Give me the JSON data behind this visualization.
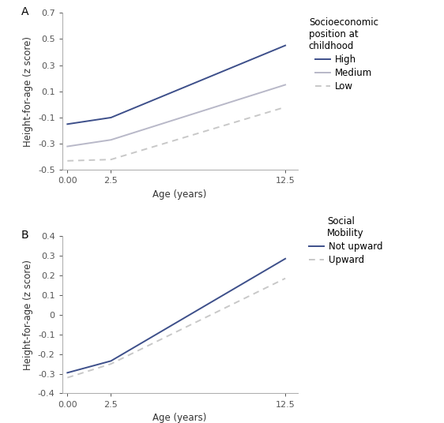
{
  "panel_A": {
    "x": [
      0.0,
      2.5,
      12.5
    ],
    "high": [
      -0.15,
      -0.1,
      0.45
    ],
    "medium": [
      -0.32,
      -0.27,
      0.15
    ],
    "low": [
      -0.43,
      -0.42,
      -0.02
    ],
    "ylim": [
      -0.5,
      0.7
    ],
    "yticks": [
      -0.5,
      -0.3,
      -0.1,
      0.1,
      0.3,
      0.5,
      0.7
    ],
    "xticks": [
      0.0,
      2.5,
      12.5
    ],
    "xlabel": "Age (years)",
    "ylabel": "Height-for-age (z score)",
    "label": "A",
    "legend_title": "Socioeconomic\nposition at\nchildhood",
    "legend_entries": [
      "High",
      "Medium",
      "Low"
    ]
  },
  "panel_B": {
    "x": [
      0.0,
      2.5,
      12.5
    ],
    "not_upward": [
      -0.295,
      -0.235,
      0.285
    ],
    "upward": [
      -0.32,
      -0.25,
      0.185
    ],
    "ylim": [
      -0.4,
      0.4
    ],
    "yticks": [
      -0.4,
      -0.3,
      -0.2,
      -0.1,
      0.0,
      0.1,
      0.2,
      0.3,
      0.4
    ],
    "xticks": [
      0.0,
      2.5,
      12.5
    ],
    "xlabel": "Age (years)",
    "ylabel": "Height-for-age (z score)",
    "label": "B",
    "legend_title": "Social\nMobility",
    "legend_entries": [
      "Not upward",
      "Upward"
    ]
  },
  "color_blue": "#3d4f8a",
  "color_medium_gray": "#b8b8c8",
  "color_dashed_gray": "#c8c8c8",
  "linewidth": 1.4,
  "fontsize_label": 8.5,
  "fontsize_tick": 8,
  "fontsize_legend_title": 8.5,
  "fontsize_legend": 8.5,
  "fontsize_panel": 10,
  "spine_color": "#aaaaaa"
}
